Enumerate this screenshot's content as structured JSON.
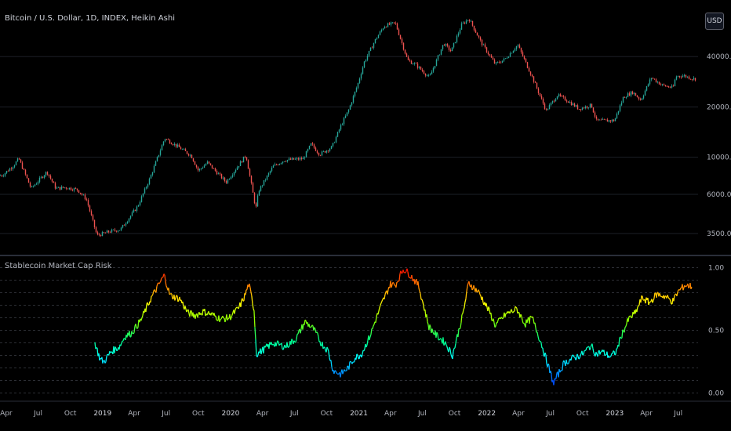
{
  "header": {
    "symbol_title": "Bitcoin / U.S. Dollar, 1D, INDEX, Heikin Ashi",
    "currency_button": "USD"
  },
  "indicator": {
    "title": "Stablecoin Market Cap Risk"
  },
  "colors": {
    "background": "#000000",
    "candle_up": "#26a69a",
    "candle_down": "#ef5350",
    "axis_text": "#b2b5be",
    "separator": "#2a2e39",
    "grid": "#1c1f27",
    "risk_gradient": [
      "#0000ff",
      "#0080ff",
      "#00ffff",
      "#00ff80",
      "#80ff00",
      "#ffff00",
      "#ff8000",
      "#ff0000"
    ]
  },
  "chart_data": [
    {
      "type": "line",
      "name_hint": "price",
      "yscale": "log",
      "y_tick_labels": [
        "40000.00",
        "20000.00",
        "10000.00",
        "6000.00",
        "3500.00"
      ],
      "y_ticks": [
        40000,
        20000,
        10000,
        6000,
        3500
      ],
      "ylim": [
        2700,
        80000
      ],
      "x_tick_labels": [
        "Apr",
        "Jul",
        "Oct",
        "2019",
        "Apr",
        "Jul",
        "Oct",
        "2020",
        "Apr",
        "Jul",
        "Oct",
        "2021",
        "Apr",
        "Jul",
        "Oct",
        "2022",
        "Apr",
        "Jul",
        "Oct",
        "2023",
        "Apr",
        "Jul"
      ],
      "x_tick_dates": [
        "2018-04-01",
        "2018-07-01",
        "2018-10-01",
        "2019-01-01",
        "2019-04-01",
        "2019-07-01",
        "2019-10-01",
        "2020-01-01",
        "2020-04-01",
        "2020-07-01",
        "2020-10-01",
        "2021-01-01",
        "2021-04-01",
        "2021-07-01",
        "2021-10-01",
        "2022-01-01",
        "2022-04-01",
        "2022-07-01",
        "2022-10-01",
        "2023-01-01",
        "2023-04-01",
        "2023-07-01"
      ],
      "x": [
        "2018-03-20",
        "2018-04-20",
        "2018-05-06",
        "2018-06-10",
        "2018-07-25",
        "2018-08-20",
        "2018-09-15",
        "2018-10-20",
        "2018-11-15",
        "2018-12-15",
        "2019-01-20",
        "2019-02-20",
        "2019-04-10",
        "2019-05-15",
        "2019-06-26",
        "2019-08-05",
        "2019-09-10",
        "2019-09-30",
        "2019-10-26",
        "2019-12-18",
        "2020-02-13",
        "2020-03-12",
        "2020-03-20",
        "2020-04-30",
        "2020-06-01",
        "2020-07-25",
        "2020-08-17",
        "2020-09-10",
        "2020-10-15",
        "2020-11-10",
        "2020-12-01",
        "2020-12-27",
        "2021-01-15",
        "2021-02-15",
        "2021-03-13",
        "2021-04-14",
        "2021-05-19",
        "2021-06-10",
        "2021-07-20",
        "2021-08-30",
        "2021-09-20",
        "2021-10-20",
        "2021-11-10",
        "2021-12-15",
        "2022-01-24",
        "2022-02-20",
        "2022-03-29",
        "2022-05-10",
        "2022-06-18",
        "2022-07-20",
        "2022-08-15",
        "2022-09-20",
        "2022-10-25",
        "2022-11-09",
        "2022-12-30",
        "2023-01-25",
        "2023-02-20",
        "2023-03-15",
        "2023-04-14",
        "2023-05-15",
        "2023-06-15",
        "2023-06-23",
        "2023-07-15",
        "2023-08-10"
      ],
      "values": [
        7800,
        8900,
        9800,
        6500,
        8200,
        6500,
        6600,
        6400,
        5600,
        3400,
        3600,
        3700,
        5100,
        7500,
        13000,
        11500,
        10200,
        8300,
        9300,
        7100,
        10300,
        4900,
        6300,
        8800,
        9600,
        9800,
        12000,
        10400,
        11500,
        15500,
        19000,
        27000,
        37000,
        50000,
        61000,
        63500,
        38000,
        36000,
        30000,
        48000,
        43000,
        62000,
        67500,
        48500,
        36000,
        38500,
        47000,
        30000,
        19000,
        23500,
        22000,
        19500,
        20500,
        16500,
        16600,
        23000,
        24500,
        22000,
        30000,
        27000,
        26000,
        30500,
        30800,
        29500
      ]
    },
    {
      "type": "line",
      "name_hint": "risk",
      "y_tick_labels": [
        "1.00",
        "0.50",
        "0.00"
      ],
      "y_ticks": [
        1.0,
        0.5,
        0.0
      ],
      "ylim": [
        -0.04,
        1.06
      ],
      "grid_levels": [
        0.0,
        0.1,
        0.2,
        0.3,
        0.4,
        0.5,
        0.6,
        0.7,
        0.8,
        0.9,
        1.0
      ],
      "x": [
        "2018-12-10",
        "2018-12-25",
        "2019-01-05",
        "2019-01-25",
        "2019-02-18",
        "2019-03-05",
        "2019-03-25",
        "2019-04-20",
        "2019-05-18",
        "2019-06-26",
        "2019-07-12",
        "2019-08-10",
        "2019-09-01",
        "2019-09-22",
        "2019-10-15",
        "2019-11-05",
        "2019-12-05",
        "2019-12-28",
        "2020-01-25",
        "2020-02-10",
        "2020-02-22",
        "2020-03-08",
        "2020-03-15",
        "2020-04-01",
        "2020-05-01",
        "2020-06-05",
        "2020-07-05",
        "2020-08-01",
        "2020-08-25",
        "2020-09-15",
        "2020-10-05",
        "2020-10-20",
        "2020-11-10",
        "2020-12-01",
        "2020-12-20",
        "2021-01-08",
        "2021-02-01",
        "2021-02-20",
        "2021-03-10",
        "2021-04-01",
        "2021-04-15",
        "2021-05-08",
        "2021-05-25",
        "2021-06-20",
        "2021-07-20",
        "2021-08-10",
        "2021-09-05",
        "2021-09-25",
        "2021-10-25",
        "2021-11-10",
        "2021-12-10",
        "2022-01-10",
        "2022-01-25",
        "2022-02-25",
        "2022-03-28",
        "2022-04-20",
        "2022-05-10",
        "2022-06-05",
        "2022-06-18",
        "2022-07-10",
        "2022-08-10",
        "2022-09-05",
        "2022-10-01",
        "2022-10-25",
        "2022-11-09",
        "2022-11-25",
        "2022-12-20",
        "2023-01-05",
        "2023-01-20",
        "2023-02-10",
        "2023-03-01",
        "2023-03-20",
        "2023-04-10",
        "2023-05-01",
        "2023-05-25",
        "2023-06-15",
        "2023-07-01",
        "2023-07-20",
        "2023-08-10"
      ],
      "values": [
        0.4,
        0.27,
        0.25,
        0.33,
        0.37,
        0.45,
        0.48,
        0.58,
        0.75,
        0.94,
        0.78,
        0.75,
        0.64,
        0.62,
        0.65,
        0.63,
        0.59,
        0.6,
        0.68,
        0.77,
        0.87,
        0.67,
        0.31,
        0.34,
        0.4,
        0.37,
        0.43,
        0.57,
        0.51,
        0.4,
        0.34,
        0.18,
        0.15,
        0.2,
        0.28,
        0.31,
        0.45,
        0.6,
        0.73,
        0.87,
        0.86,
        0.99,
        0.95,
        0.86,
        0.53,
        0.46,
        0.4,
        0.3,
        0.63,
        0.88,
        0.8,
        0.64,
        0.54,
        0.63,
        0.67,
        0.55,
        0.6,
        0.4,
        0.28,
        0.08,
        0.24,
        0.28,
        0.31,
        0.38,
        0.31,
        0.33,
        0.29,
        0.33,
        0.46,
        0.59,
        0.64,
        0.76,
        0.72,
        0.79,
        0.77,
        0.73,
        0.81,
        0.86,
        0.85
      ]
    }
  ]
}
